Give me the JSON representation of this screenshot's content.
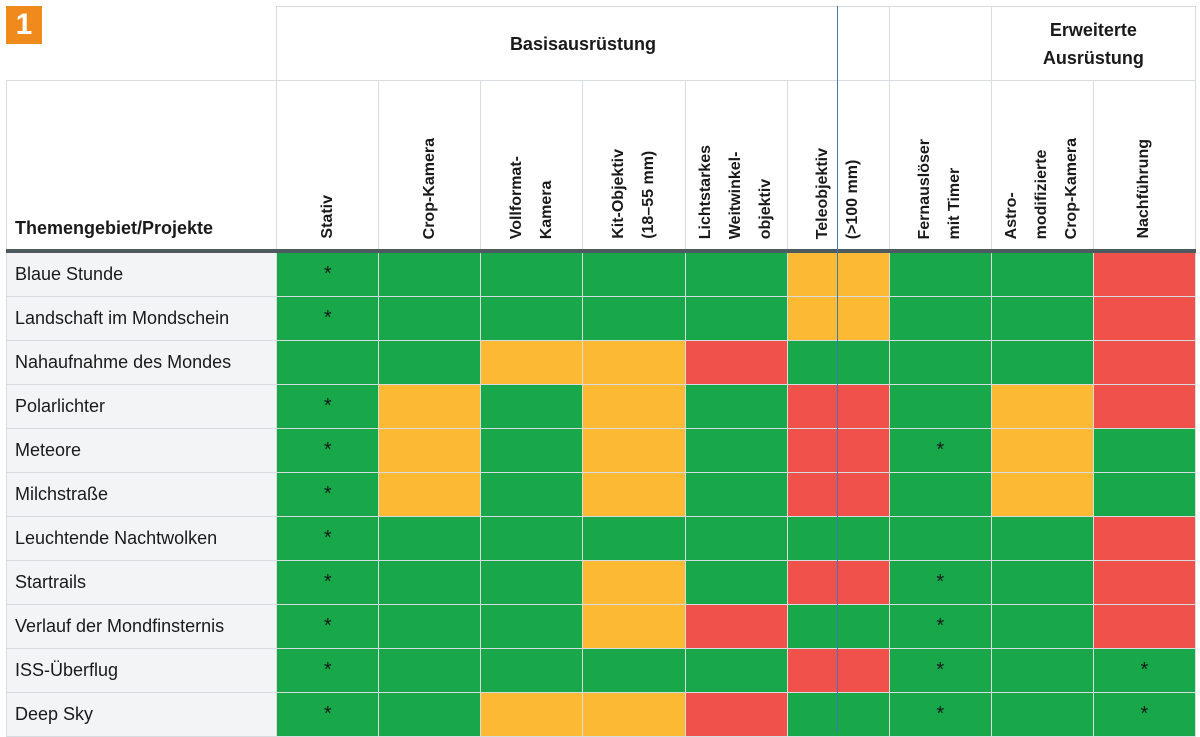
{
  "badge": "1",
  "groups": {
    "basis": "Basisausrüstung",
    "erweitert": "Erweiterte\nAusrüstung"
  },
  "topic_header": "Themengebiet/Projekte",
  "columns": [
    "Stativ",
    "Crop-Kamera",
    "Vollformat-\nKamera",
    "Kit-Objektiv\n(18–55 mm)",
    "Lichtstarkes\nWeitwinkel-\nobjektiv",
    "Teleobjektiv\n(>100 mm)",
    "Fernauslöser\nmit Timer",
    "Astro-\nmodifizierte\nCrop-Kamera",
    "Nachführung"
  ],
  "rows": [
    {
      "name": "Blaue Stunde",
      "cells": [
        "g",
        "g",
        "g",
        "g",
        "g",
        "o",
        "g",
        "g",
        "r"
      ],
      "marks": [
        "*",
        "",
        "",
        "",
        "",
        "",
        "",
        "",
        ""
      ]
    },
    {
      "name": "Landschaft im Mondschein",
      "cells": [
        "g",
        "g",
        "g",
        "g",
        "g",
        "o",
        "g",
        "g",
        "r"
      ],
      "marks": [
        "*",
        "",
        "",
        "",
        "",
        "",
        "",
        "",
        ""
      ]
    },
    {
      "name": "Nahaufnahme des Mondes",
      "cells": [
        "g",
        "g",
        "o",
        "o",
        "r",
        "g",
        "g",
        "g",
        "r"
      ],
      "marks": [
        "",
        "",
        "",
        "",
        "",
        "",
        "",
        "",
        ""
      ]
    },
    {
      "name": "Polarlichter",
      "cells": [
        "g",
        "o",
        "g",
        "o",
        "g",
        "r",
        "g",
        "o",
        "r"
      ],
      "marks": [
        "*",
        "",
        "",
        "",
        "",
        "",
        "",
        "",
        ""
      ]
    },
    {
      "name": "Meteore",
      "cells": [
        "g",
        "o",
        "g",
        "o",
        "g",
        "r",
        "g",
        "o",
        "g"
      ],
      "marks": [
        "*",
        "",
        "",
        "",
        "",
        "",
        "*",
        "",
        ""
      ]
    },
    {
      "name": "Milchstraße",
      "cells": [
        "g",
        "o",
        "g",
        "o",
        "g",
        "r",
        "g",
        "o",
        "g"
      ],
      "marks": [
        "*",
        "",
        "",
        "",
        "",
        "",
        "",
        "",
        ""
      ]
    },
    {
      "name": "Leuchtende Nachtwolken",
      "cells": [
        "g",
        "g",
        "g",
        "g",
        "g",
        "g",
        "g",
        "g",
        "r"
      ],
      "marks": [
        "*",
        "",
        "",
        "",
        "",
        "",
        "",
        "",
        ""
      ]
    },
    {
      "name": "Startrails",
      "cells": [
        "g",
        "g",
        "g",
        "o",
        "g",
        "r",
        "g",
        "g",
        "r"
      ],
      "marks": [
        "*",
        "",
        "",
        "",
        "",
        "",
        "*",
        "",
        ""
      ]
    },
    {
      "name": "Verlauf der Mondfinsternis",
      "cells": [
        "g",
        "g",
        "g",
        "o",
        "r",
        "g",
        "g",
        "g",
        "r"
      ],
      "marks": [
        "*",
        "",
        "",
        "",
        "",
        "",
        "*",
        "",
        ""
      ]
    },
    {
      "name": "ISS-Überflug",
      "cells": [
        "g",
        "g",
        "g",
        "g",
        "g",
        "r",
        "g",
        "g",
        "g"
      ],
      "marks": [
        "*",
        "",
        "",
        "",
        "",
        "",
        "*",
        "",
        "*"
      ]
    },
    {
      "name": "Deep Sky",
      "cells": [
        "g",
        "g",
        "o",
        "o",
        "r",
        "g",
        "g",
        "g",
        "g"
      ],
      "marks": [
        "*",
        "",
        "",
        "",
        "",
        "",
        "*",
        "",
        "*"
      ]
    }
  ],
  "colors": {
    "g": "#18a84a",
    "o": "#fbb934",
    "r": "#f0514a"
  }
}
